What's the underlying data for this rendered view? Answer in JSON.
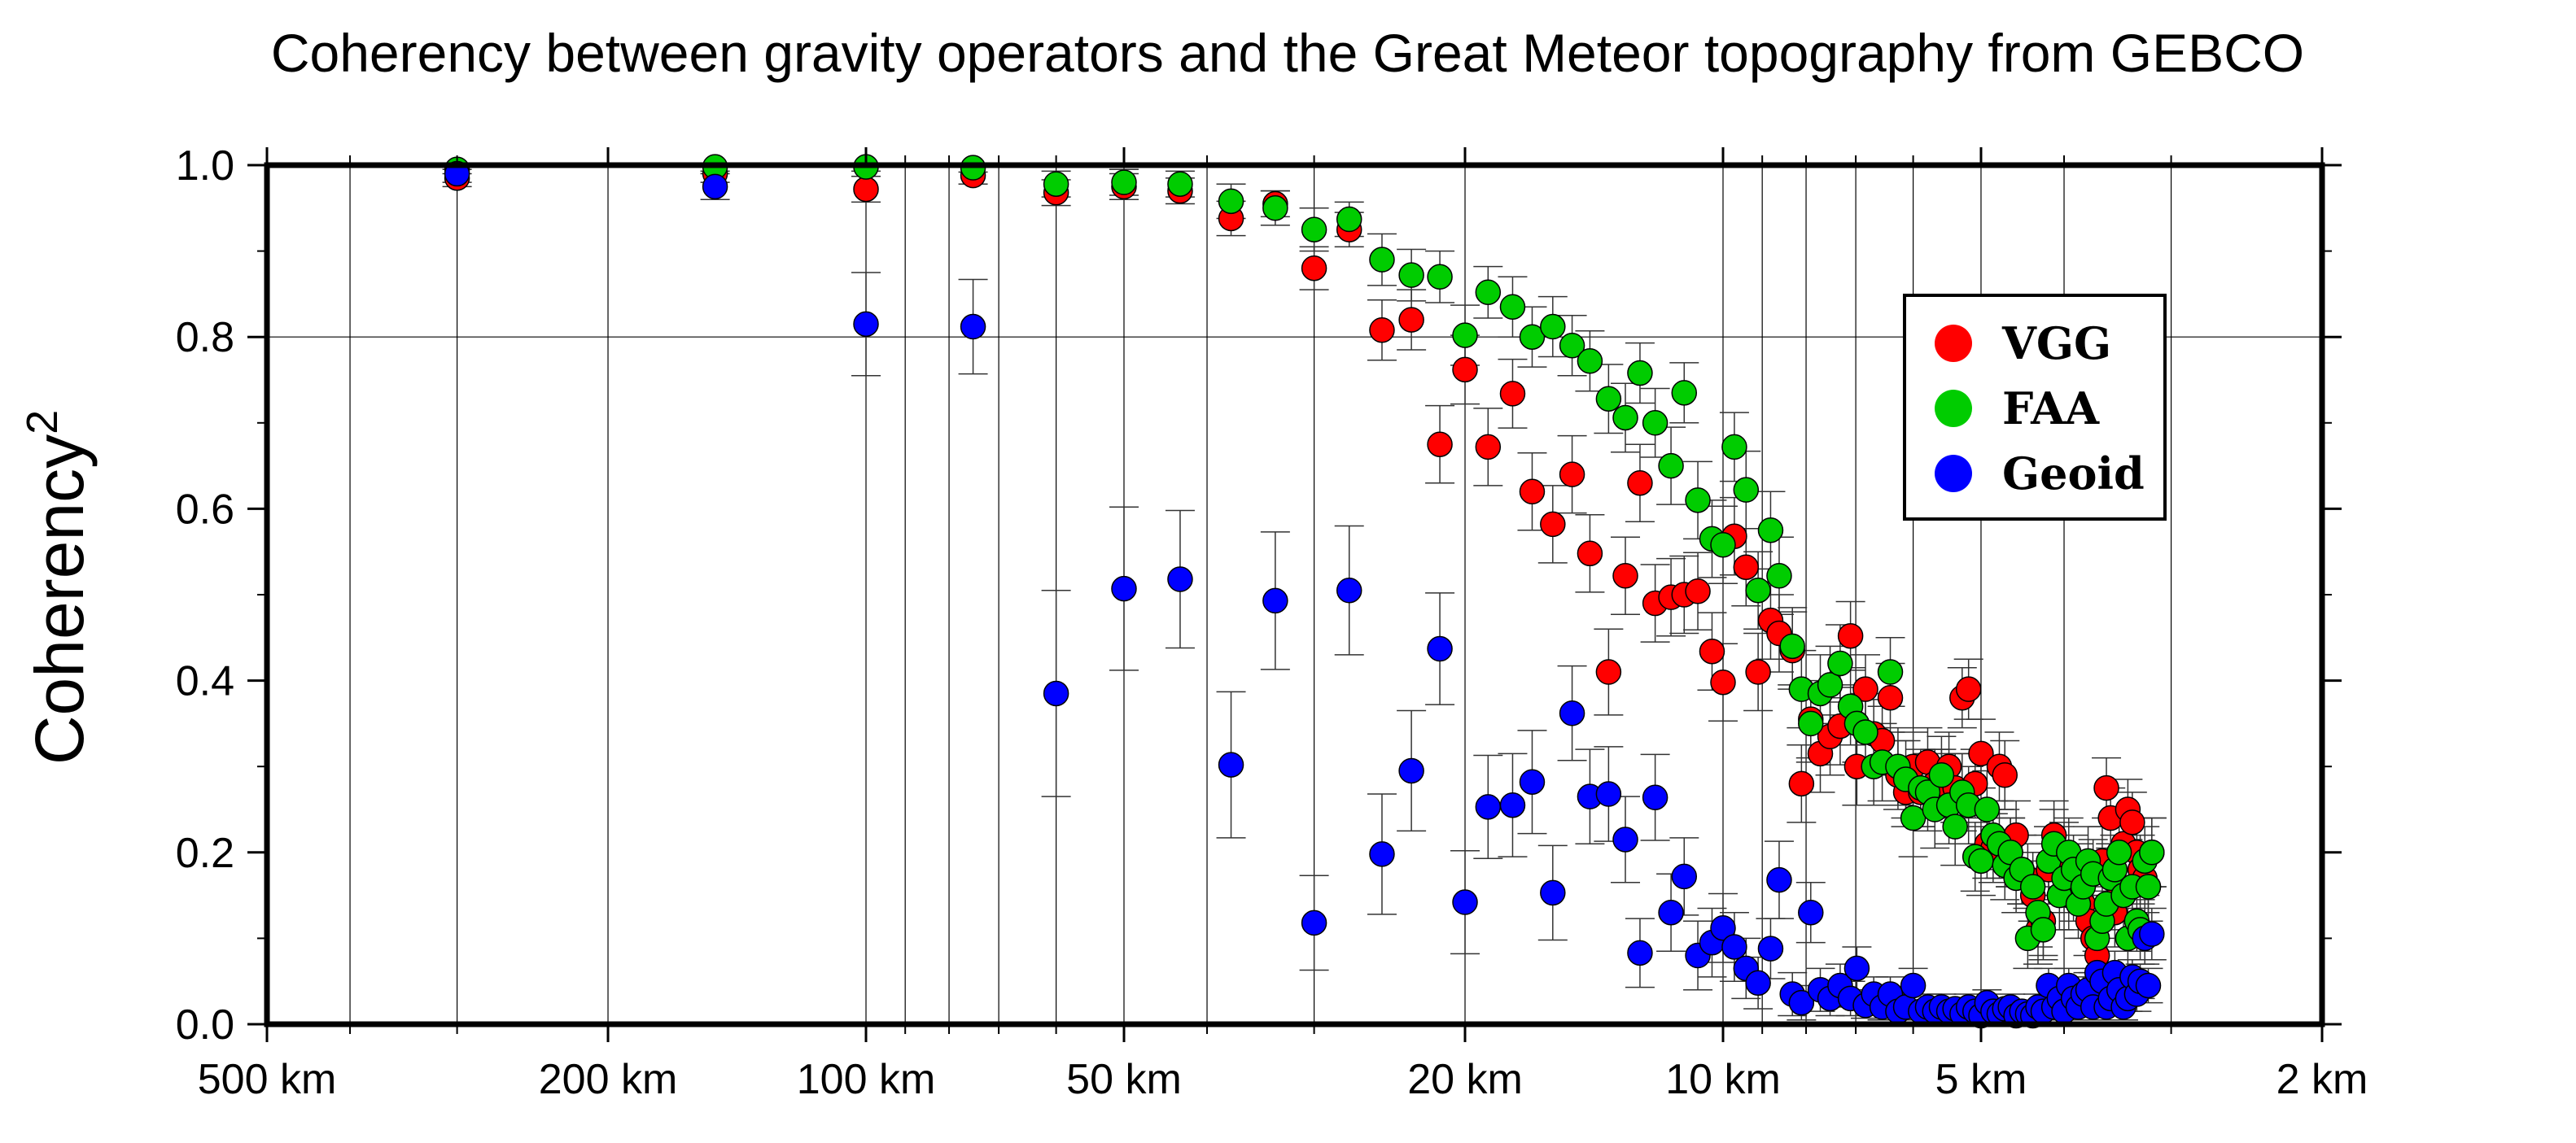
{
  "chart_data": {
    "type": "scatter",
    "title": "Coherency between gravity operators and the Great Meteor topography  from GEBCO",
    "xlabel": "",
    "ylabel": "Coherency",
    "ylabel_superscript": "2",
    "x_scale": "log",
    "x_units": "wavelength in km, decreasing left to right",
    "xlim": [
      500,
      2
    ],
    "ylim": [
      0.0,
      1.0
    ],
    "x_ticks": [
      {
        "value": 500,
        "label": "500 km"
      },
      {
        "value": 200,
        "label": "200 km"
      },
      {
        "value": 100,
        "label": "100 km"
      },
      {
        "value": 50,
        "label": "50 km"
      },
      {
        "value": 20,
        "label": "20 km"
      },
      {
        "value": 10,
        "label": "10 km"
      },
      {
        "value": 5,
        "label": "5 km"
      },
      {
        "value": 2,
        "label": "2 km"
      }
    ],
    "y_ticks": [
      {
        "value": 0.0,
        "label": "0.0"
      },
      {
        "value": 0.2,
        "label": "0.2"
      },
      {
        "value": 0.4,
        "label": "0.4"
      },
      {
        "value": 0.6,
        "label": "0.6"
      },
      {
        "value": 0.8,
        "label": "0.8"
      },
      {
        "value": 1.0,
        "label": "1.0"
      }
    ],
    "grid": true,
    "legend": {
      "position": "top-right"
    },
    "series": [
      {
        "name": "VGG",
        "color": "#ff0000",
        "x": [
          300,
          150,
          100,
          75,
          60,
          50,
          43,
          37.5,
          33.3,
          30,
          27.3,
          25,
          23.1,
          21.4,
          20,
          18.8,
          17.6,
          16.7,
          15.8,
          15,
          14.3,
          13.6,
          13,
          12.5,
          12,
          11.5,
          11.1,
          10.7,
          10.3,
          10,
          9.7,
          9.4,
          9.1,
          8.8,
          8.6,
          8.3,
          8.1,
          7.9,
          7.7,
          7.5,
          7.3,
          7.1,
          6.98,
          6.82,
          6.67,
          6.52,
          6.38,
          6.25,
          6.12,
          6.0,
          5.88,
          5.77,
          5.66,
          5.56,
          5.45,
          5.36,
          5.26,
          5.17,
          5.08,
          5.0,
          4.92,
          4.84,
          4.76,
          4.69,
          4.62,
          4.55,
          4.48,
          4.41,
          4.35,
          4.29,
          4.23,
          4.17,
          4.11,
          4.05,
          4.0,
          3.95,
          3.9,
          3.85,
          3.8,
          3.75,
          3.7,
          3.66,
          3.61,
          3.57,
          3.53,
          3.49,
          3.45,
          3.41,
          3.37,
          3.33,
          3.29,
          3.26,
          3.22,
          3.19,
          3.16
        ],
        "values": [
          0.985,
          0.99,
          0.972,
          0.988,
          0.968,
          0.975,
          0.97,
          0.938,
          0.955,
          0.88,
          0.925,
          0.808,
          0.82,
          0.675,
          0.762,
          0.672,
          0.734,
          0.62,
          0.582,
          0.64,
          0.548,
          0.41,
          0.522,
          0.63,
          0.49,
          0.497,
          0.5,
          0.504,
          0.434,
          0.398,
          0.568,
          0.532,
          0.41,
          0.47,
          0.455,
          0.435,
          0.28,
          0.355,
          0.315,
          0.335,
          0.347,
          0.452,
          0.3,
          0.39,
          0.338,
          0.33,
          0.38,
          0.29,
          0.27,
          0.3,
          0.27,
          0.305,
          0.28,
          0.28,
          0.3,
          0.275,
          0.38,
          0.39,
          0.28,
          0.315,
          0.21,
          0.205,
          0.3,
          0.29,
          0.2,
          0.22,
          0.18,
          0.17,
          0.15,
          0.11,
          0.12,
          0.18,
          0.22,
          0.19,
          0.195,
          0.15,
          0.16,
          0.17,
          0.14,
          0.12,
          0.1,
          0.08,
          0.19,
          0.275,
          0.24,
          0.13,
          0.16,
          0.21,
          0.25,
          0.235,
          0.2,
          0.18,
          0.17,
          0.16,
          0.2
        ],
        "errors": [
          0.01,
          0.01,
          0.015,
          0.01,
          0.015,
          0.015,
          0.015,
          0.02,
          0.015,
          0.025,
          0.02,
          0.035,
          0.035,
          0.045,
          0.04,
          0.045,
          0.04,
          0.045,
          0.045,
          0.045,
          0.045,
          0.05,
          0.045,
          0.045,
          0.045,
          0.045,
          0.045,
          0.045,
          0.045,
          0.045,
          0.045,
          0.045,
          0.045,
          0.045,
          0.045,
          0.045,
          0.045,
          0.045,
          0.045,
          0.045,
          0.045,
          0.04,
          0.045,
          0.04,
          0.04,
          0.04,
          0.04,
          0.04,
          0.04,
          0.04,
          0.04,
          0.04,
          0.04,
          0.04,
          0.04,
          0.04,
          0.035,
          0.035,
          0.04,
          0.04,
          0.04,
          0.04,
          0.04,
          0.04,
          0.04,
          0.04,
          0.04,
          0.04,
          0.04,
          0.04,
          0.04,
          0.04,
          0.04,
          0.04,
          0.04,
          0.04,
          0.04,
          0.04,
          0.04,
          0.04,
          0.04,
          0.04,
          0.04,
          0.035,
          0.035,
          0.04,
          0.04,
          0.04,
          0.035,
          0.035,
          0.04,
          0.04,
          0.04,
          0.04,
          0.04
        ]
      },
      {
        "name": "FAA",
        "color": "#00cc00",
        "x": [
          300,
          150,
          100,
          75,
          60,
          50,
          43,
          37.5,
          33.3,
          30,
          27.3,
          25,
          23.1,
          21.4,
          20,
          18.8,
          17.6,
          16.7,
          15.8,
          15,
          14.3,
          13.6,
          13,
          12.5,
          12,
          11.5,
          11.1,
          10.7,
          10.3,
          10,
          9.7,
          9.4,
          9.1,
          8.8,
          8.6,
          8.3,
          8.1,
          7.9,
          7.7,
          7.5,
          7.3,
          7.1,
          6.98,
          6.82,
          6.67,
          6.52,
          6.38,
          6.25,
          6.12,
          6.0,
          5.88,
          5.77,
          5.66,
          5.56,
          5.45,
          5.36,
          5.26,
          5.17,
          5.08,
          5.0,
          4.92,
          4.84,
          4.76,
          4.69,
          4.62,
          4.55,
          4.48,
          4.41,
          4.35,
          4.29,
          4.23,
          4.17,
          4.11,
          4.05,
          4.0,
          3.95,
          3.9,
          3.85,
          3.8,
          3.75,
          3.7,
          3.66,
          3.61,
          3.57,
          3.53,
          3.49,
          3.45,
          3.41,
          3.37,
          3.33,
          3.29,
          3.26,
          3.22,
          3.19,
          3.16
        ],
        "values": [
          0.995,
          0.998,
          0.998,
          0.997,
          0.978,
          0.98,
          0.978,
          0.958,
          0.95,
          0.925,
          0.937,
          0.89,
          0.872,
          0.87,
          0.802,
          0.852,
          0.835,
          0.8,
          0.812,
          0.79,
          0.772,
          0.728,
          0.706,
          0.758,
          0.7,
          0.65,
          0.735,
          0.61,
          0.565,
          0.558,
          0.672,
          0.622,
          0.505,
          0.575,
          0.522,
          0.44,
          0.39,
          0.35,
          0.385,
          0.395,
          0.42,
          0.37,
          0.35,
          0.34,
          0.3,
          0.305,
          0.41,
          0.3,
          0.285,
          0.24,
          0.275,
          0.27,
          0.25,
          0.29,
          0.255,
          0.23,
          0.27,
          0.255,
          0.195,
          0.19,
          0.25,
          0.22,
          0.21,
          0.185,
          0.2,
          0.17,
          0.18,
          0.1,
          0.16,
          0.13,
          0.11,
          0.19,
          0.21,
          0.15,
          0.17,
          0.2,
          0.18,
          0.14,
          0.16,
          0.19,
          0.175,
          0.1,
          0.12,
          0.14,
          0.17,
          0.18,
          0.2,
          0.15,
          0.1,
          0.16,
          0.12,
          0.11,
          0.19,
          0.16,
          0.2
        ],
        "errors": [
          0.005,
          0.005,
          0.005,
          0.005,
          0.015,
          0.015,
          0.015,
          0.02,
          0.02,
          0.025,
          0.02,
          0.03,
          0.03,
          0.03,
          0.035,
          0.03,
          0.035,
          0.035,
          0.035,
          0.035,
          0.035,
          0.04,
          0.04,
          0.035,
          0.04,
          0.045,
          0.035,
          0.045,
          0.045,
          0.045,
          0.04,
          0.045,
          0.045,
          0.045,
          0.045,
          0.045,
          0.045,
          0.045,
          0.045,
          0.045,
          0.045,
          0.045,
          0.045,
          0.045,
          0.045,
          0.045,
          0.04,
          0.045,
          0.045,
          0.045,
          0.045,
          0.045,
          0.045,
          0.045,
          0.045,
          0.045,
          0.045,
          0.045,
          0.04,
          0.04,
          0.045,
          0.04,
          0.04,
          0.04,
          0.04,
          0.04,
          0.04,
          0.035,
          0.04,
          0.04,
          0.035,
          0.04,
          0.04,
          0.04,
          0.04,
          0.04,
          0.04,
          0.04,
          0.04,
          0.04,
          0.04,
          0.035,
          0.035,
          0.04,
          0.04,
          0.04,
          0.04,
          0.04,
          0.035,
          0.04,
          0.035,
          0.035,
          0.04,
          0.04,
          0.04
        ]
      },
      {
        "name": "Geoid",
        "color": "#0000ff",
        "x": [
          300,
          150,
          100,
          75,
          60,
          50,
          43,
          37.5,
          33.3,
          30,
          27.3,
          25,
          23.1,
          21.4,
          20,
          18.8,
          17.6,
          16.7,
          15.8,
          15,
          14.3,
          13.6,
          13,
          12.5,
          12,
          11.5,
          11.1,
          10.7,
          10.3,
          10,
          9.7,
          9.4,
          9.1,
          8.8,
          8.6,
          8.3,
          8.1,
          7.9,
          7.7,
          7.5,
          7.3,
          7.1,
          6.98,
          6.82,
          6.67,
          6.52,
          6.38,
          6.25,
          6.12,
          6.0,
          5.88,
          5.77,
          5.66,
          5.56,
          5.45,
          5.36,
          5.26,
          5.17,
          5.08,
          5.0,
          4.92,
          4.84,
          4.76,
          4.69,
          4.62,
          4.55,
          4.48,
          4.41,
          4.35,
          4.29,
          4.23,
          4.17,
          4.11,
          4.05,
          4.0,
          3.95,
          3.9,
          3.85,
          3.8,
          3.75,
          3.7,
          3.66,
          3.61,
          3.57,
          3.53,
          3.49,
          3.45,
          3.41,
          3.37,
          3.33,
          3.29,
          3.26,
          3.22,
          3.19,
          3.16
        ],
        "values": [
          0.99,
          0.975,
          0.815,
          0.812,
          0.385,
          0.507,
          0.518,
          0.302,
          0.493,
          0.118,
          0.505,
          0.198,
          0.295,
          0.437,
          0.142,
          0.253,
          0.255,
          0.282,
          0.153,
          0.362,
          0.265,
          0.268,
          0.215,
          0.083,
          0.264,
          0.13,
          0.172,
          0.08,
          0.095,
          0.112,
          0.09,
          0.065,
          0.048,
          0.088,
          0.168,
          0.035,
          0.025,
          0.13,
          0.04,
          0.03,
          0.045,
          0.03,
          0.065,
          0.022,
          0.035,
          0.02,
          0.035,
          0.015,
          0.02,
          0.045,
          0.015,
          0.02,
          0.015,
          0.02,
          0.015,
          0.018,
          0.012,
          0.02,
          0.015,
          0.01,
          0.025,
          0.015,
          0.012,
          0.018,
          0.02,
          0.01,
          0.015,
          0.012,
          0.01,
          0.02,
          0.015,
          0.045,
          0.02,
          0.03,
          0.015,
          0.045,
          0.03,
          0.02,
          0.035,
          0.04,
          0.02,
          0.06,
          0.05,
          0.02,
          0.03,
          0.06,
          0.04,
          0.02,
          0.03,
          0.055,
          0.035,
          0.05,
          0.1,
          0.045,
          0.105
        ],
        "errors": [
          0.01,
          0.015,
          0.06,
          0.055,
          0.12,
          0.095,
          0.08,
          0.085,
          0.08,
          0.055,
          0.075,
          0.07,
          0.07,
          0.065,
          0.06,
          0.06,
          0.06,
          0.06,
          0.055,
          0.055,
          0.055,
          0.055,
          0.05,
          0.04,
          0.05,
          0.045,
          0.045,
          0.04,
          0.04,
          0.04,
          0.04,
          0.035,
          0.03,
          0.035,
          0.045,
          0.025,
          0.02,
          0.035,
          0.025,
          0.02,
          0.025,
          0.02,
          0.025,
          0.015,
          0.02,
          0.015,
          0.02,
          0.01,
          0.015,
          0.02,
          0.01,
          0.015,
          0.01,
          0.015,
          0.01,
          0.01,
          0.01,
          0.015,
          0.01,
          0.01,
          0.015,
          0.01,
          0.01,
          0.01,
          0.015,
          0.01,
          0.01,
          0.01,
          0.01,
          0.015,
          0.01,
          0.02,
          0.015,
          0.015,
          0.01,
          0.02,
          0.015,
          0.015,
          0.02,
          0.02,
          0.015,
          0.025,
          0.02,
          0.015,
          0.015,
          0.025,
          0.02,
          0.015,
          0.015,
          0.02,
          0.02,
          0.02,
          0.03,
          0.02,
          0.03
        ]
      }
    ]
  }
}
